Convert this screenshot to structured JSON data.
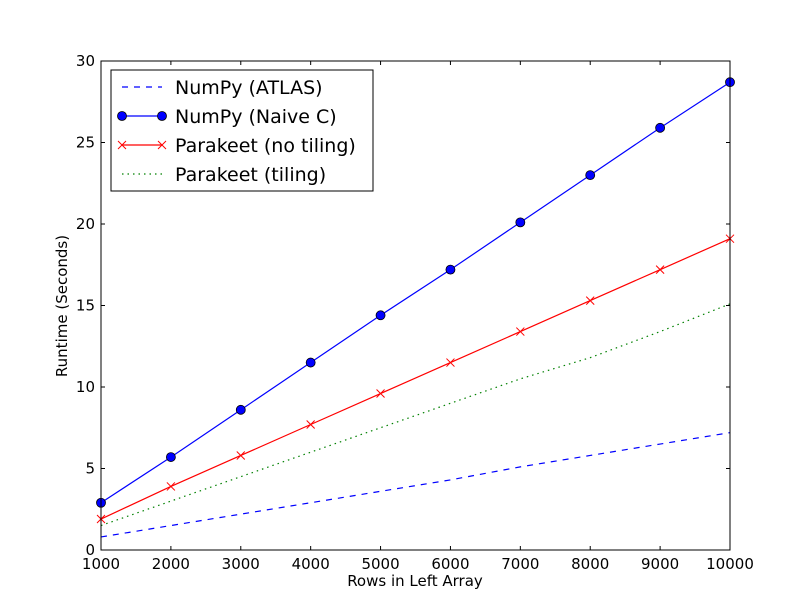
{
  "chart_data": {
    "type": "line",
    "title": "",
    "xlabel": "Rows in Left Array",
    "ylabel": "Runtime (Seconds)",
    "xlim": [
      1000,
      10000
    ],
    "ylim": [
      0,
      30
    ],
    "x_ticks": [
      1000,
      2000,
      3000,
      4000,
      5000,
      6000,
      7000,
      8000,
      9000,
      10000
    ],
    "y_ticks": [
      0,
      5,
      10,
      15,
      20,
      25,
      30
    ],
    "grid": false,
    "legend_position": "top-left",
    "x": [
      1000,
      2000,
      3000,
      4000,
      5000,
      6000,
      7000,
      8000,
      9000,
      10000
    ],
    "series": [
      {
        "name": "NumPy (ATLAS)",
        "color": "#0000ff",
        "style": "dashed",
        "marker": "none",
        "values": [
          0.8,
          1.5,
          2.2,
          2.9,
          3.6,
          4.3,
          5.1,
          5.8,
          6.5,
          7.2
        ]
      },
      {
        "name": "NumPy (Naive C)",
        "color": "#0000ff",
        "style": "solid",
        "marker": "circle",
        "values": [
          2.9,
          5.7,
          8.6,
          11.5,
          14.4,
          17.2,
          20.1,
          23.0,
          25.9,
          28.7
        ]
      },
      {
        "name": "Parakeet (no tiling)",
        "color": "#ff0000",
        "style": "solid",
        "marker": "x",
        "values": [
          1.9,
          3.9,
          5.8,
          7.7,
          9.6,
          11.5,
          13.4,
          15.3,
          17.2,
          19.1
        ]
      },
      {
        "name": "Parakeet (tiling)",
        "color": "#008000",
        "style": "dotted",
        "marker": "none",
        "values": [
          1.5,
          3.0,
          4.5,
          6.0,
          7.5,
          9.0,
          10.5,
          11.8,
          13.4,
          15.1
        ]
      }
    ]
  }
}
